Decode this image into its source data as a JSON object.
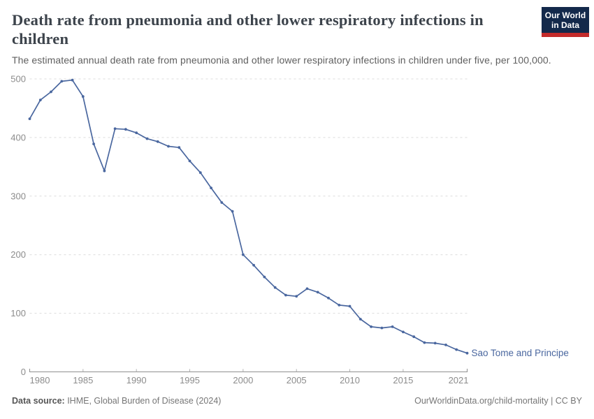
{
  "header": {
    "title": "Death rate from pneumonia and other lower respiratory infections in children",
    "subtitle": "The estimated annual death rate from pneumonia and other lower respiratory infections in children under five, per 100,000.",
    "logo": {
      "line1": "Our World",
      "line2": "in Data",
      "bg_color": "#13294b",
      "accent_color": "#c32b2b"
    }
  },
  "chart_data": {
    "type": "line",
    "title": "Death rate from pneumonia and other lower respiratory infections in children",
    "xlabel": "",
    "ylabel": "",
    "xlim": [
      1980,
      2021
    ],
    "ylim": [
      0,
      500
    ],
    "x_ticks": [
      1980,
      1985,
      1990,
      1995,
      2000,
      2005,
      2010,
      2015,
      2021
    ],
    "y_ticks": [
      0,
      100,
      200,
      300,
      400,
      500
    ],
    "grid": "horizontal-dashed",
    "legend_position": "end-of-line-label",
    "colors": {
      "grid": "#dcdcdc",
      "tick_label": "#8c8c8c",
      "axis": "#8f8f8f",
      "axis_tick": "#b0b0b0"
    },
    "series": [
      {
        "name": "Sao Tome and Principe",
        "color": "#4a679f",
        "x": [
          1980,
          1981,
          1982,
          1983,
          1984,
          1985,
          1986,
          1987,
          1988,
          1989,
          1990,
          1991,
          1992,
          1993,
          1994,
          1995,
          1996,
          1997,
          1998,
          1999,
          2000,
          2001,
          2002,
          2003,
          2004,
          2005,
          2006,
          2007,
          2008,
          2009,
          2010,
          2011,
          2012,
          2013,
          2014,
          2015,
          2016,
          2017,
          2018,
          2019,
          2020,
          2021
        ],
        "values": [
          432,
          464,
          478,
          496,
          498,
          470,
          389,
          343,
          415,
          414,
          408,
          398,
          393,
          385,
          383,
          360,
          340,
          314,
          289,
          274,
          200,
          182,
          162,
          144,
          131,
          129,
          142,
          136,
          126,
          114,
          112,
          90,
          77,
          75,
          77,
          68,
          60,
          50,
          49,
          46,
          38,
          32
        ]
      }
    ]
  },
  "footer": {
    "source_label": "Data source:",
    "source_text": " IHME, Global Burden of Disease (2024)",
    "link": "OurWorldinData.org/child-mortality | CC BY"
  }
}
